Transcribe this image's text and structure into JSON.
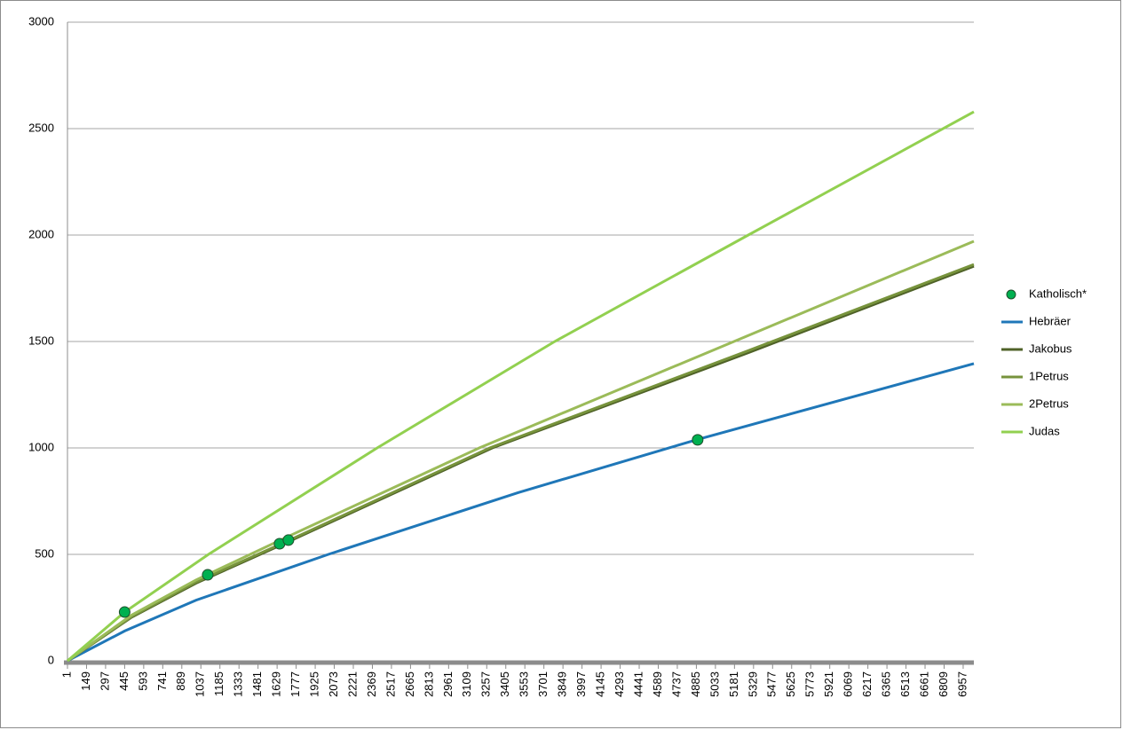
{
  "chart_data": {
    "type": "line",
    "xlim": [
      1,
      7040
    ],
    "ylim": [
      0,
      3000
    ],
    "yticks": [
      0,
      500,
      1000,
      1500,
      2000,
      2500,
      3000
    ],
    "xticks": [
      1,
      149,
      297,
      445,
      593,
      741,
      889,
      1037,
      1185,
      1333,
      1481,
      1629,
      1777,
      1925,
      2073,
      2221,
      2369,
      2517,
      2665,
      2813,
      2961,
      3109,
      3257,
      3405,
      3553,
      3701,
      3849,
      3997,
      4145,
      4293,
      4441,
      4589,
      4737,
      4885,
      5033,
      5181,
      5329,
      5477,
      5625,
      5773,
      5921,
      6069,
      6217,
      6365,
      6513,
      6661,
      6809,
      6957
    ],
    "grid": true,
    "legend": "right",
    "series": [
      {
        "name": "Katholisch*",
        "type": "scatter",
        "color": "#00b050",
        "x": [
          445,
          1090,
          1648,
          1717,
          4895
        ],
        "values": [
          229,
          404,
          550,
          567,
          1038
        ]
      },
      {
        "name": "Hebräer",
        "type": "line",
        "color": "#1f77b8",
        "x": [
          1,
          445,
          1000,
          2027,
          3500,
          4895,
          7040
        ],
        "values": [
          0,
          140,
          285,
          500,
          790,
          1040,
          1396
        ]
      },
      {
        "name": "Jakobus",
        "type": "line",
        "color": "#4f6228",
        "x": [
          1,
          500,
          1000,
          1700,
          3300,
          5300,
          7040
        ],
        "values": [
          0,
          205,
          365,
          555,
          1000,
          1450,
          1854
        ]
      },
      {
        "name": "1Petrus",
        "type": "line",
        "color": "#77933c",
        "x": [
          1,
          500,
          1000,
          1700,
          3280,
          5280,
          7040
        ],
        "values": [
          0,
          208,
          370,
          560,
          1000,
          1455,
          1862
        ]
      },
      {
        "name": "2Petrus",
        "type": "line",
        "color": "#9bbb59",
        "x": [
          1,
          500,
          1000,
          1700,
          3199,
          5177,
          7040
        ],
        "values": [
          0,
          215,
          380,
          580,
          1000,
          1500,
          1971
        ]
      },
      {
        "name": "Judas",
        "type": "line",
        "color": "#92d050",
        "x": [
          1,
          445,
          1096,
          2406,
          3785,
          5288,
          7040
        ],
        "values": [
          0,
          229,
          500,
          1000,
          1500,
          2000,
          2579
        ]
      }
    ]
  }
}
